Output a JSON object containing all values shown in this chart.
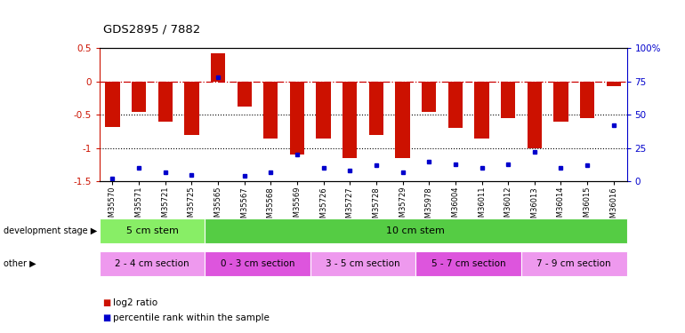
{
  "title": "GDS2895 / 7882",
  "samples": [
    "GSM35570",
    "GSM35571",
    "GSM35721",
    "GSM35725",
    "GSM35565",
    "GSM35567",
    "GSM35568",
    "GSM35569",
    "GSM35726",
    "GSM35727",
    "GSM35728",
    "GSM35729",
    "GSM35978",
    "GSM36004",
    "GSM36011",
    "GSM36012",
    "GSM36013",
    "GSM36014",
    "GSM36015",
    "GSM36016"
  ],
  "log2_ratio": [
    -0.68,
    -0.45,
    -0.6,
    -0.8,
    0.42,
    -0.37,
    -0.85,
    -1.1,
    -0.85,
    -1.15,
    -0.8,
    -1.15,
    -0.45,
    -0.7,
    -0.85,
    -0.55,
    -1.0,
    -0.6,
    -0.55,
    -0.07
  ],
  "percentile": [
    2,
    10,
    7,
    5,
    78,
    4,
    7,
    20,
    10,
    8,
    12,
    7,
    15,
    13,
    10,
    13,
    22,
    10,
    12,
    42
  ],
  "ylim_left": [
    -1.5,
    0.5
  ],
  "ylim_right": [
    0,
    100
  ],
  "bar_color": "#cc1100",
  "dot_color": "#0000cc",
  "hline_color": "#cc0000",
  "dotline1": -0.5,
  "dotline2": -1.0,
  "development_stage_groups": [
    {
      "label": "5 cm stem",
      "start": 0,
      "end": 4,
      "color": "#88ee66"
    },
    {
      "label": "10 cm stem",
      "start": 4,
      "end": 20,
      "color": "#55cc44"
    }
  ],
  "other_groups": [
    {
      "label": "2 - 4 cm section",
      "start": 0,
      "end": 4,
      "color": "#ee99ee"
    },
    {
      "label": "0 - 3 cm section",
      "start": 4,
      "end": 8,
      "color": "#dd55dd"
    },
    {
      "label": "3 - 5 cm section",
      "start": 8,
      "end": 12,
      "color": "#ee99ee"
    },
    {
      "label": "5 - 7 cm section",
      "start": 12,
      "end": 16,
      "color": "#dd55dd"
    },
    {
      "label": "7 - 9 cm section",
      "start": 16,
      "end": 20,
      "color": "#ee99ee"
    }
  ],
  "dev_stage_label": "development stage",
  "other_label": "other",
  "legend_red_label": "log2 ratio",
  "legend_blue_label": "percentile rank within the sample"
}
